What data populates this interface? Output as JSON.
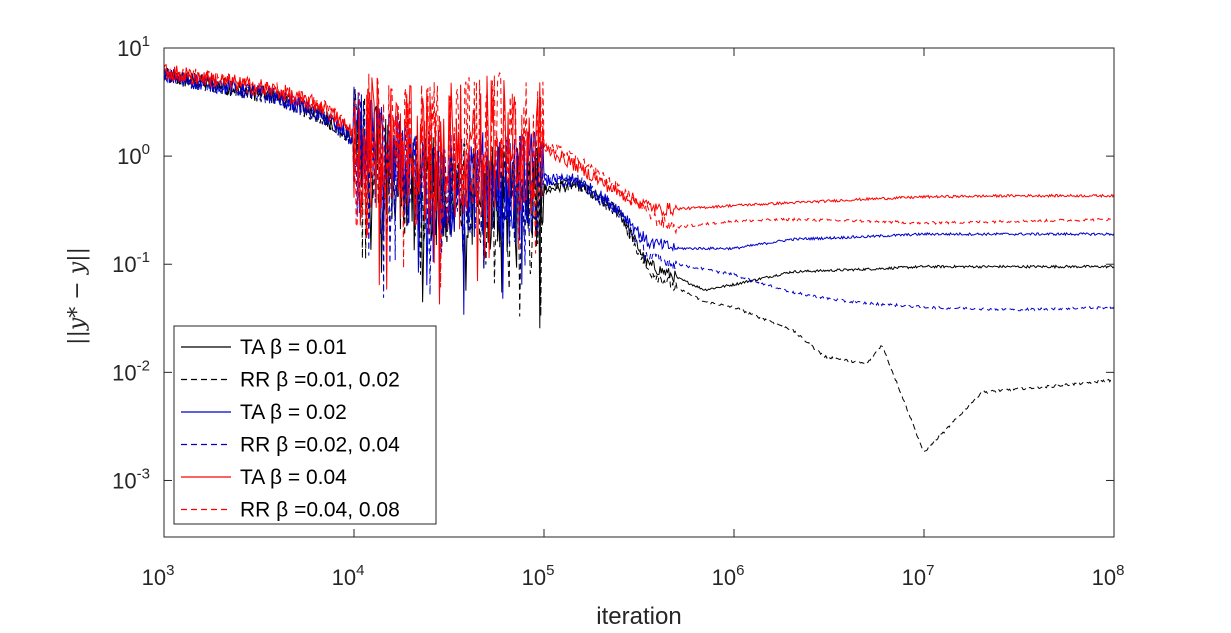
{
  "chart_data": {
    "type": "line",
    "title": "",
    "xlabel": "iteration",
    "ylabel": "||y* − y||",
    "xscale": "log",
    "yscale": "log",
    "xlim": [
      1000,
      100000000
    ],
    "ylim": [
      0.0003,
      10
    ],
    "x_tick_values": [
      1000,
      10000,
      100000,
      1000000,
      10000000,
      100000000
    ],
    "x_ticks": [
      {
        "base": "10",
        "exp": "3"
      },
      {
        "base": "10",
        "exp": "4"
      },
      {
        "base": "10",
        "exp": "5"
      },
      {
        "base": "10",
        "exp": "6"
      },
      {
        "base": "10",
        "exp": "7"
      },
      {
        "base": "10",
        "exp": "8"
      }
    ],
    "y_tick_values": [
      0.001,
      0.01,
      0.1,
      1,
      10
    ],
    "y_ticks": [
      {
        "base": "10",
        "exp": "-3"
      },
      {
        "base": "10",
        "exp": "-2"
      },
      {
        "base": "10",
        "exp": "-1"
      },
      {
        "base": "10",
        "exp": "0"
      },
      {
        "base": "10",
        "exp": "1"
      }
    ],
    "grid": false,
    "legend_position": "bottom-left",
    "series": [
      {
        "name": "TA β = 0.01",
        "color": "#000000",
        "dash": "solid",
        "x": [
          1000,
          2000,
          4000,
          7000,
          10000,
          20000,
          40000,
          70000,
          100000,
          150000,
          250000,
          350000,
          500000,
          700000,
          1000000,
          2000000,
          5000000,
          10000000,
          30000000,
          100000000
        ],
        "y": [
          5.5,
          4.5,
          3.5,
          2.3,
          1.4,
          0.5,
          0.45,
          0.4,
          0.5,
          0.55,
          0.3,
          0.1,
          0.075,
          0.058,
          0.065,
          0.085,
          0.09,
          0.095,
          0.095,
          0.095
        ]
      },
      {
        "name": "RR β =0.01, 0.02",
        "color": "#000000",
        "dash": "dashed",
        "x": [
          1000,
          2000,
          4000,
          7000,
          10000,
          20000,
          40000,
          70000,
          100000,
          150000,
          250000,
          350000,
          500000,
          700000,
          1000000,
          2000000,
          3000000,
          5000000,
          6000000,
          8000000,
          10000000,
          20000000,
          30000000,
          50000000,
          100000000
        ],
        "y": [
          5.5,
          4.5,
          3.5,
          2.3,
          1.4,
          0.5,
          0.45,
          0.4,
          0.5,
          0.55,
          0.3,
          0.09,
          0.06,
          0.045,
          0.04,
          0.025,
          0.014,
          0.012,
          0.018,
          0.005,
          0.0018,
          0.0065,
          0.007,
          0.0075,
          0.0085
        ]
      },
      {
        "name": "TA β = 0.02",
        "color": "#0000cc",
        "dash": "solid",
        "x": [
          1000,
          2000,
          4000,
          7000,
          10000,
          20000,
          40000,
          70000,
          100000,
          150000,
          250000,
          350000,
          500000,
          1000000,
          2000000,
          5000000,
          10000000,
          30000000,
          100000000
        ],
        "y": [
          5.5,
          4.5,
          3.5,
          2.3,
          1.4,
          0.6,
          0.55,
          0.5,
          0.6,
          0.6,
          0.32,
          0.16,
          0.14,
          0.14,
          0.17,
          0.18,
          0.19,
          0.19,
          0.19
        ]
      },
      {
        "name": "RR β =0.02, 0.04",
        "color": "#0000cc",
        "dash": "dashed",
        "x": [
          1000,
          2000,
          4000,
          7000,
          10000,
          20000,
          40000,
          70000,
          100000,
          150000,
          250000,
          350000,
          500000,
          1000000,
          2000000,
          4000000,
          10000000,
          30000000,
          100000000
        ],
        "y": [
          5.5,
          4.5,
          3.5,
          2.3,
          1.4,
          0.6,
          0.55,
          0.5,
          0.6,
          0.6,
          0.3,
          0.12,
          0.1,
          0.08,
          0.055,
          0.045,
          0.04,
          0.038,
          0.04
        ]
      },
      {
        "name": "TA β = 0.04",
        "color": "#ff0000",
        "dash": "solid",
        "x": [
          1000,
          2000,
          4000,
          7000,
          10000,
          20000,
          40000,
          70000,
          100000,
          150000,
          250000,
          400000,
          600000,
          1000000,
          2000000,
          5000000,
          10000000,
          30000000,
          100000000
        ],
        "y": [
          6,
          5,
          4,
          2.8,
          1.6,
          1.0,
          1.2,
          1.3,
          1.2,
          0.8,
          0.45,
          0.32,
          0.33,
          0.35,
          0.37,
          0.4,
          0.42,
          0.43,
          0.43
        ]
      },
      {
        "name": "RR β =0.04, 0.08",
        "color": "#ff0000",
        "dash": "dashed",
        "x": [
          1000,
          2000,
          4000,
          7000,
          10000,
          20000,
          40000,
          70000,
          100000,
          120000,
          150000,
          250000,
          400000,
          500000,
          1000000,
          2000000,
          5000000,
          10000000,
          30000000,
          100000000
        ],
        "y": [
          6,
          5,
          4,
          2.8,
          1.6,
          1.0,
          1.3,
          1.4,
          1.2,
          1.1,
          0.9,
          0.5,
          0.25,
          0.22,
          0.25,
          0.26,
          0.25,
          0.24,
          0.25,
          0.26
        ]
      }
    ]
  }
}
